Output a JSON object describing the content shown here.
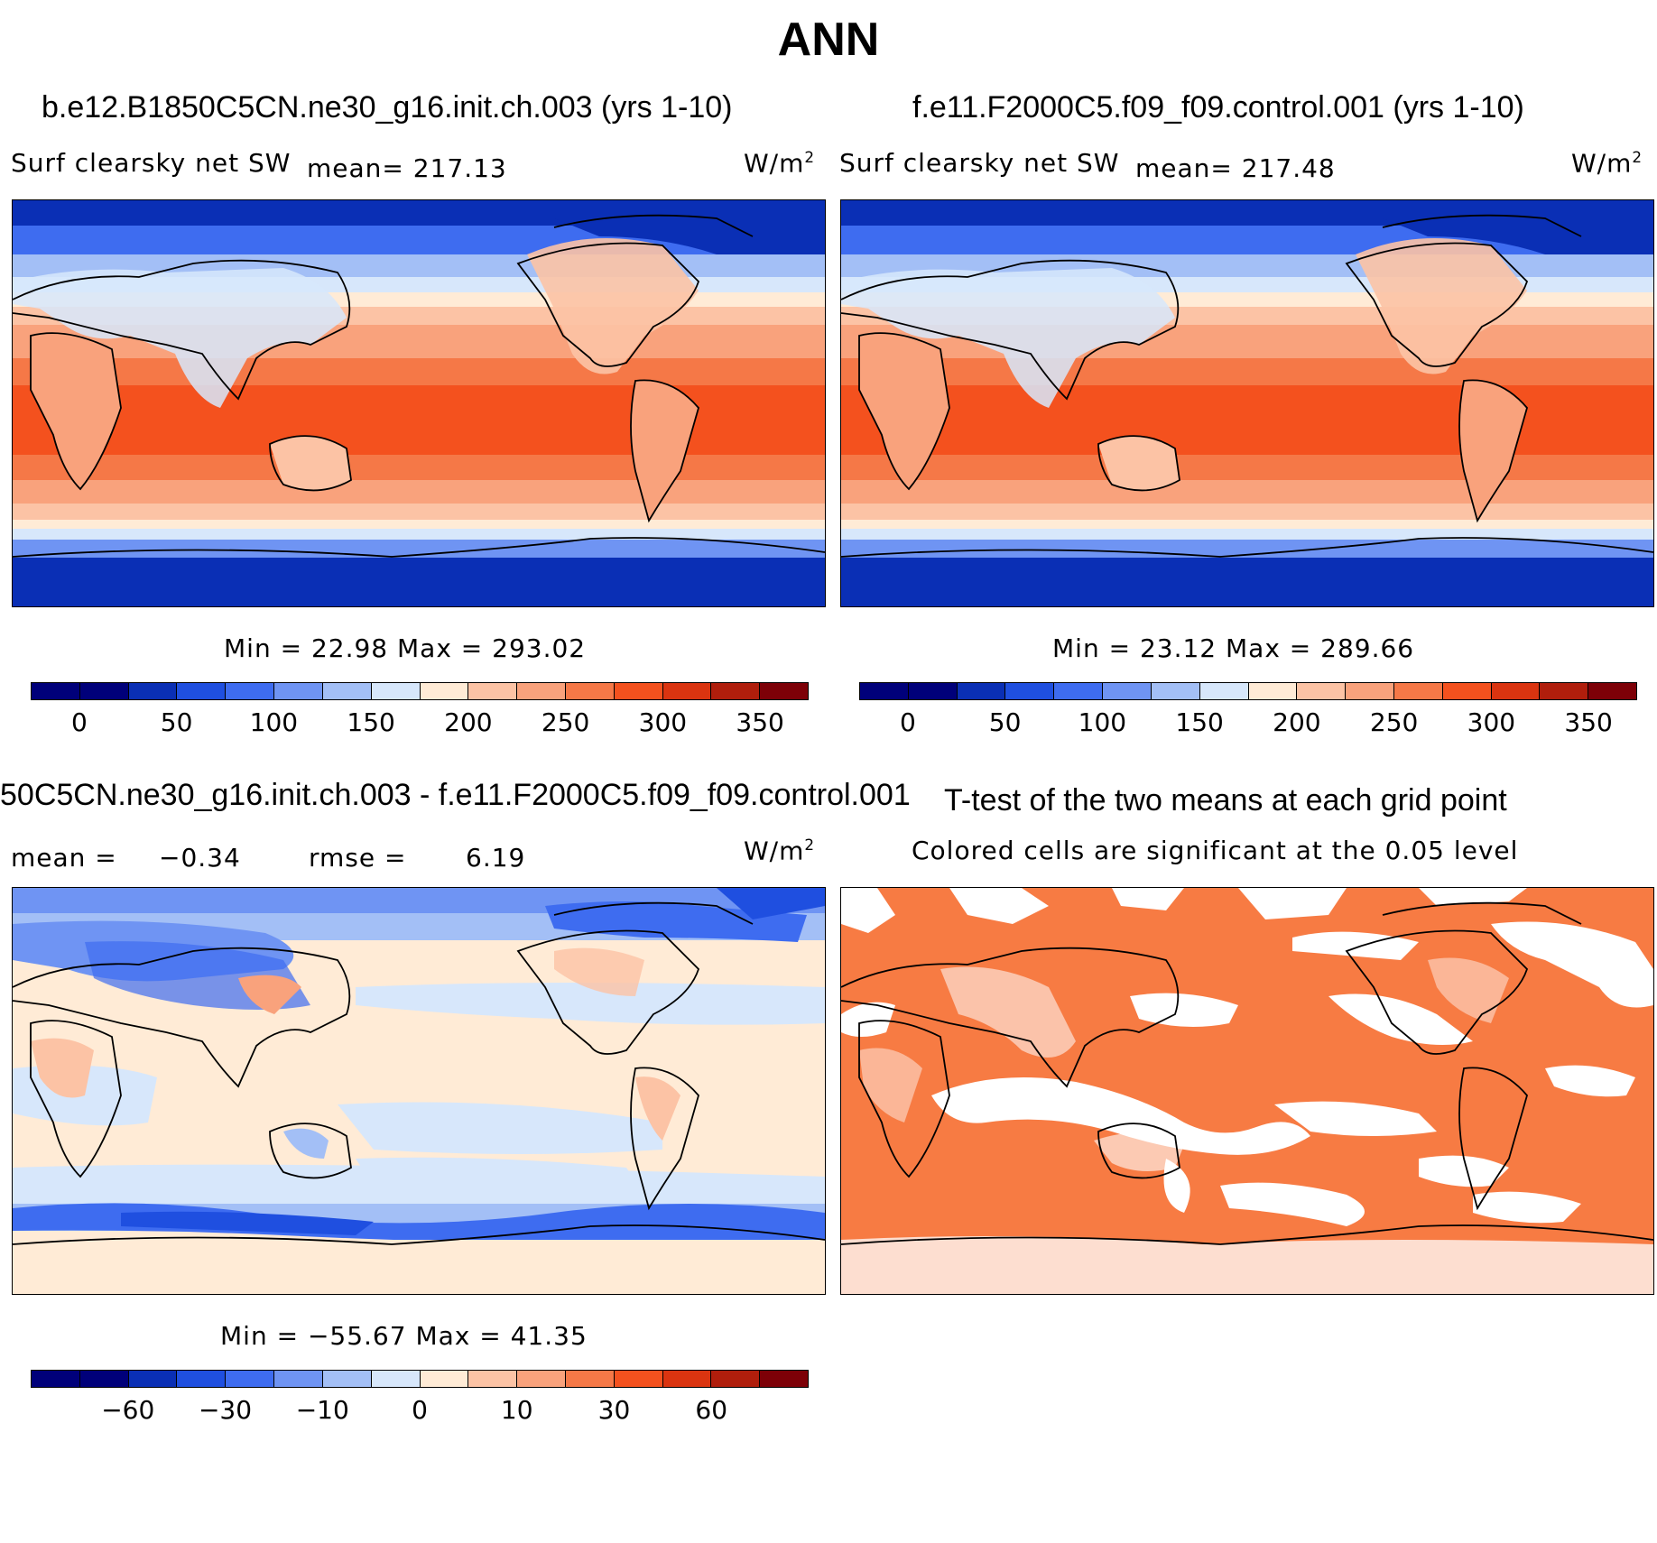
{
  "title": "ANN",
  "colors": {
    "scale": [
      "#00007a",
      "#0a2fb5",
      "#1f4fe0",
      "#3e6cf0",
      "#6f94f3",
      "#a3bff6",
      "#d7e7fb",
      "#ffebd6",
      "#fcc3a5",
      "#f9a27c",
      "#f57847",
      "#f4511e",
      "#da3410",
      "#b01e0c",
      "#7d0007"
    ],
    "significant": "#f77b43"
  },
  "panels": {
    "case1": {
      "title": "b.e12.B1850C5CN.ne30_g16.init.ch.003 (yrs 1-10)",
      "variable": "Surf clearsky net SW",
      "mean": "mean= 217.13",
      "units": "W/m",
      "units_exp": "2",
      "minmax": "Min =   22.98 Max =  293.02",
      "ticks": [
        "0",
        "50",
        "100",
        "150",
        "200",
        "250",
        "300",
        "350"
      ]
    },
    "case2": {
      "title": "f.e11.F2000C5.f09_f09.control.001 (yrs 1-10)",
      "variable": "Surf clearsky net SW",
      "mean": "mean= 217.48",
      "units": "W/m",
      "units_exp": "2",
      "minmax": "Min =   23.12 Max =  289.66",
      "ticks": [
        "0",
        "50",
        "100",
        "150",
        "200",
        "250",
        "300",
        "350"
      ]
    },
    "diff": {
      "title": "50C5CN.ne30_g16.init.ch.003 - f.e11.F2000C5.f09_f09.control.001",
      "mean_label": "mean =",
      "mean_value": "−0.34",
      "rmse_label": "rmse =",
      "rmse_value": "6.19",
      "units": "W/m",
      "units_exp": "2",
      "minmax": "Min = −55.67 Max =  41.35",
      "ticks": [
        "−60",
        "−30",
        "−10",
        "0",
        "10",
        "30",
        "60"
      ]
    },
    "ttest": {
      "title": "T-test of the two means at each grid point",
      "subtitle": "Colored cells are significant at the 0.05 level"
    }
  }
}
